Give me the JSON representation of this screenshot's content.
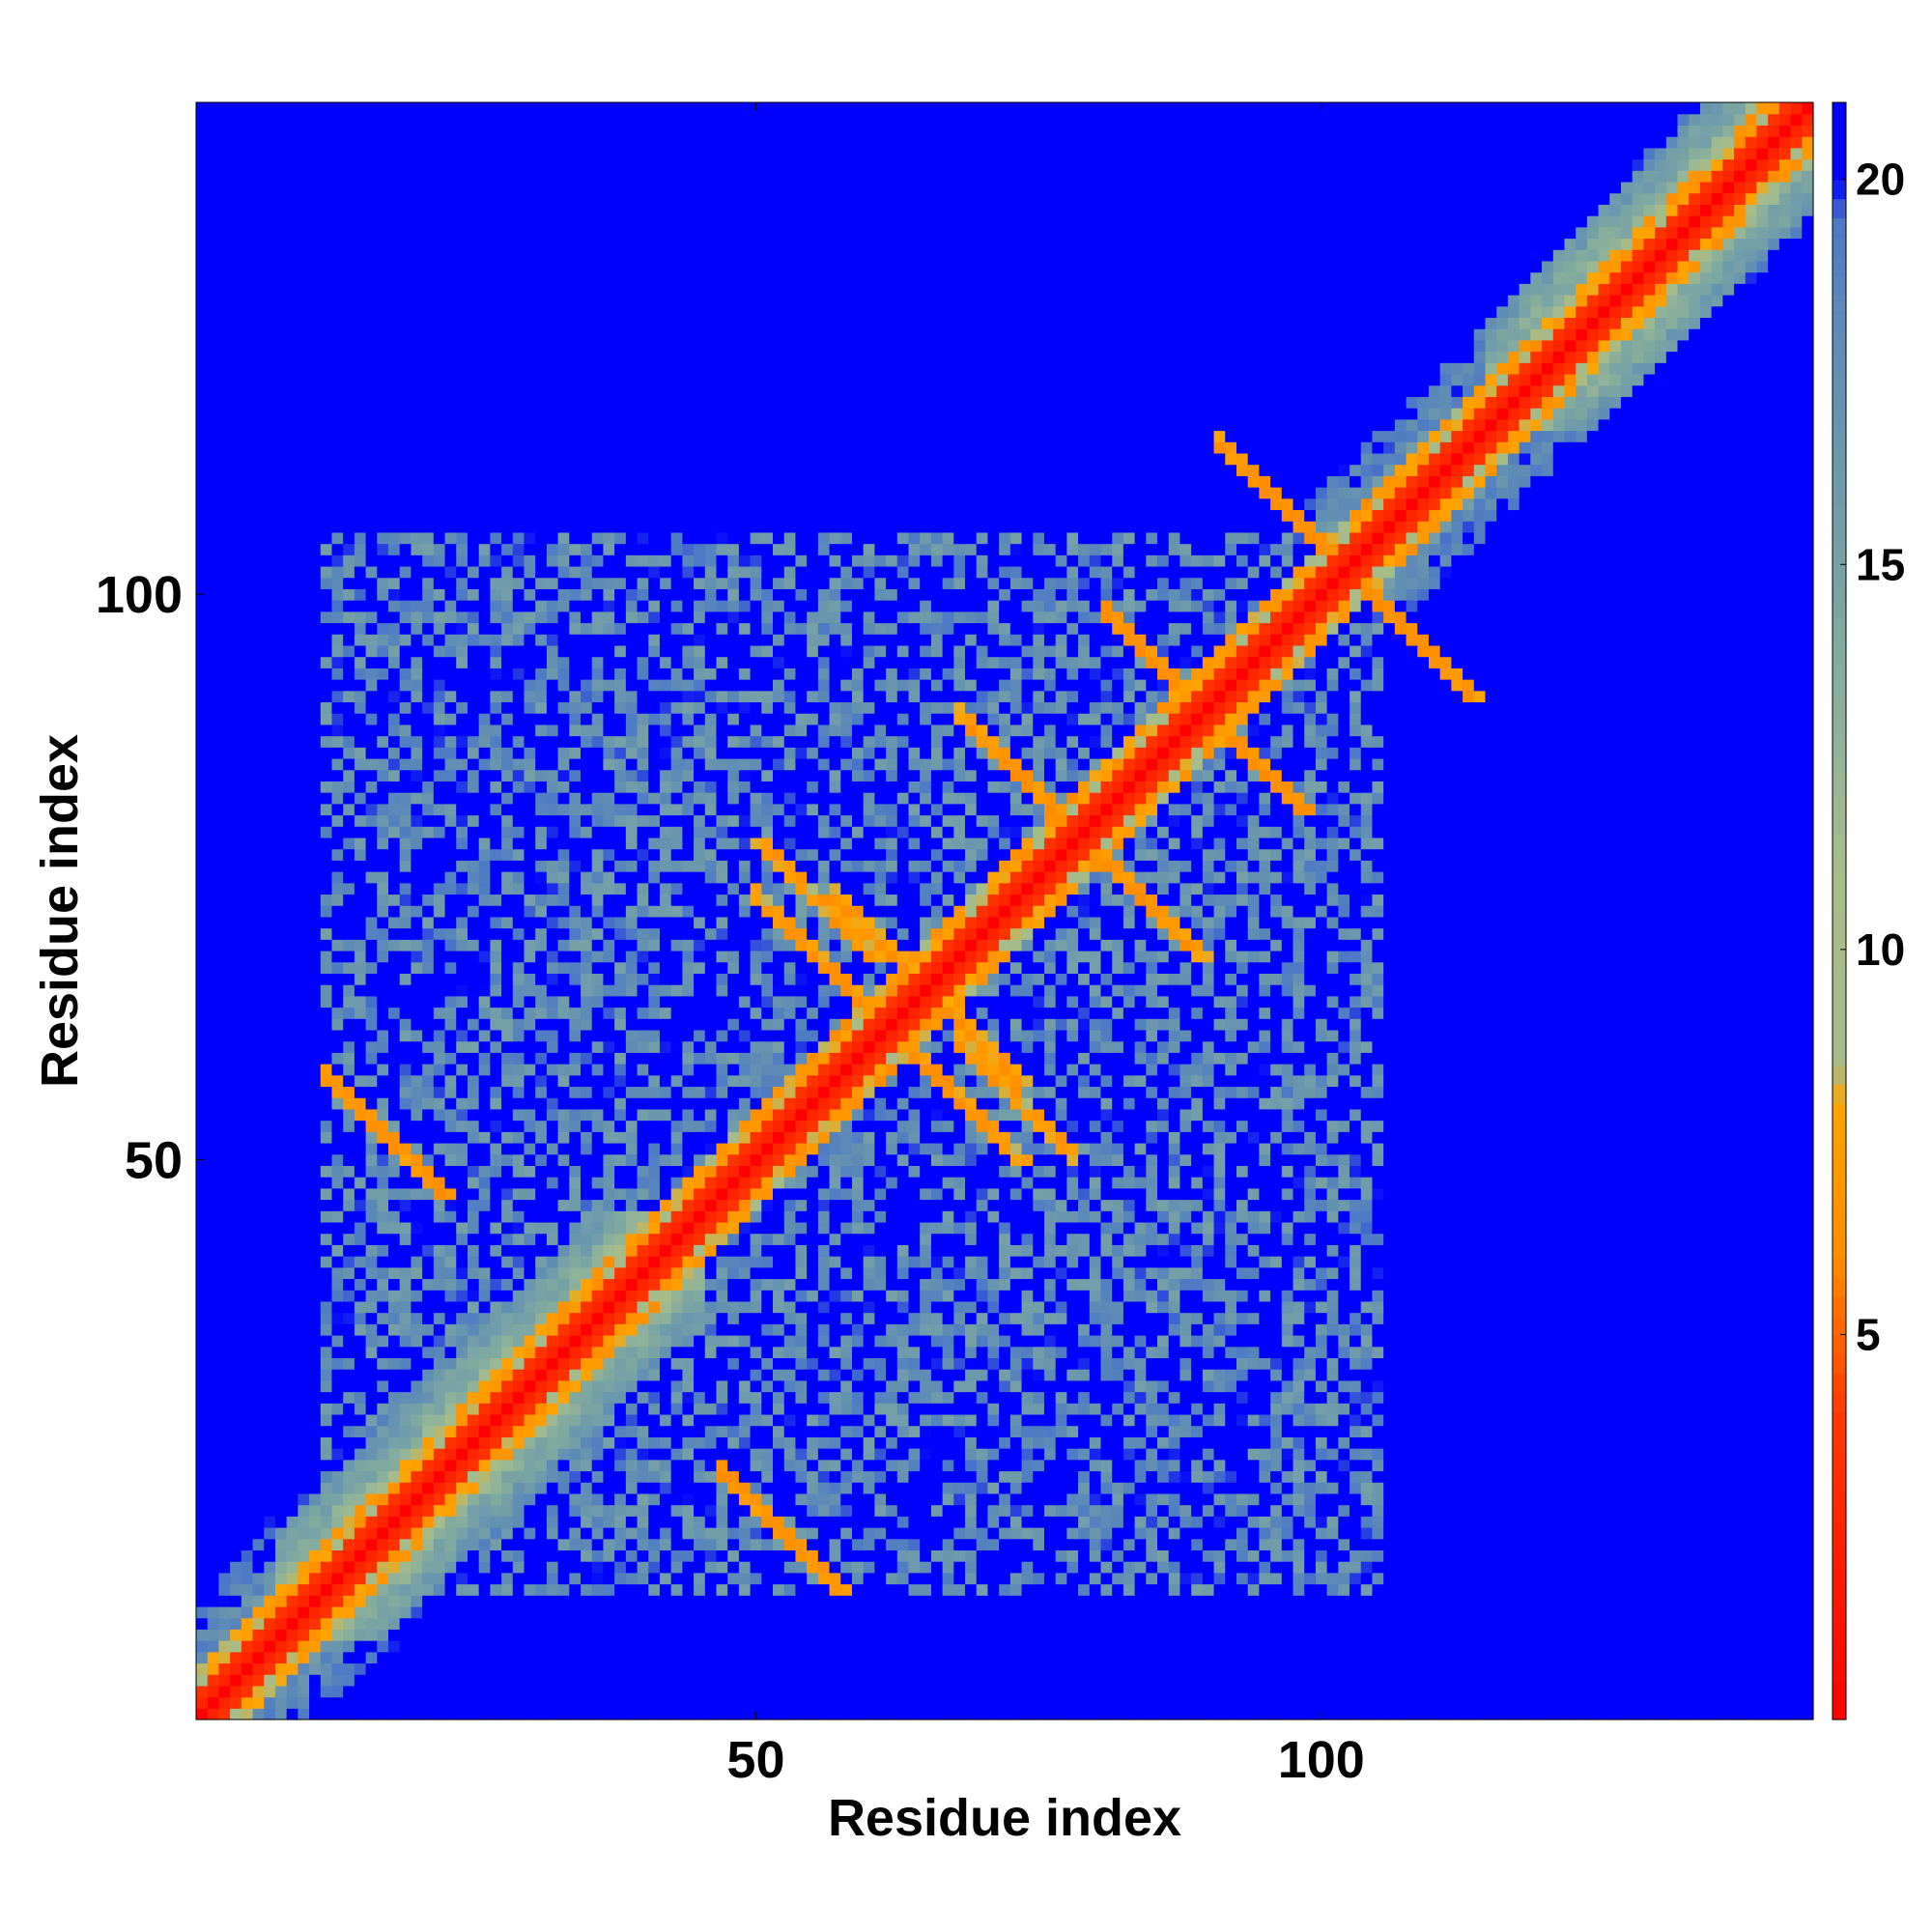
{
  "chart_data": {
    "type": "heatmap",
    "title": "",
    "xlabel": "Residue index",
    "ylabel": "Residue index",
    "n_residues": 143,
    "xlim": [
      1,
      143
    ],
    "ylim": [
      1,
      143
    ],
    "x_ticks": [
      50,
      100
    ],
    "y_ticks": [
      50,
      100
    ],
    "colorbar": {
      "range": [
        0,
        21
      ],
      "ticks": [
        5,
        10,
        15,
        20
      ],
      "stops": [
        {
          "value": 0,
          "color": "#ff0000"
        },
        {
          "value": 4,
          "color": "#ff3a00"
        },
        {
          "value": 6,
          "color": "#ff8c00"
        },
        {
          "value": 8,
          "color": "#ffa500"
        },
        {
          "value": 8.5,
          "color": "#a5bc8a"
        },
        {
          "value": 11,
          "color": "#a8bf8c"
        },
        {
          "value": 14,
          "color": "#80a9a0"
        },
        {
          "value": 18,
          "color": "#5f8cb5"
        },
        {
          "value": 19.5,
          "color": "#4d79c7"
        },
        {
          "value": 20,
          "color": "#0000ff"
        },
        {
          "value": 21,
          "color": "#0000ff"
        }
      ]
    },
    "description_of_values": "Pairwise residue distances; symmetric matrix, diagonal = 0 (red), distant pairs saturated blue (>20).",
    "features": {
      "helices": [
        [
          8,
          45
        ],
        [
          115,
          143
        ]
      ],
      "contacts": [
        {
          "center": [
            96,
            108
          ],
          "value": 6
        },
        {
          "center": [
            108,
            96
          ],
          "value": 6
        },
        {
          "center": [
            86,
            93
          ],
          "value": 6
        },
        {
          "center": [
            93,
            86
          ],
          "value": 6
        },
        {
          "center": [
            73,
            84
          ],
          "value": 6
        },
        {
          "center": [
            84,
            73
          ],
          "value": 6
        },
        {
          "center": [
            55,
            68
          ],
          "value": 6
        },
        {
          "center": [
            68,
            55
          ],
          "value": 6
        },
        {
          "center": [
            62,
            68
          ],
          "value": 6
        },
        {
          "center": [
            73,
            55
          ],
          "value": 6
        },
        {
          "center": [
            17,
            52
          ],
          "value": 6
        },
        {
          "center": [
            52,
            17
          ],
          "value": 6
        }
      ],
      "mid_range_block": {
        "x": [
          12,
          115
        ],
        "y": [
          8,
          105
        ]
      }
    }
  }
}
